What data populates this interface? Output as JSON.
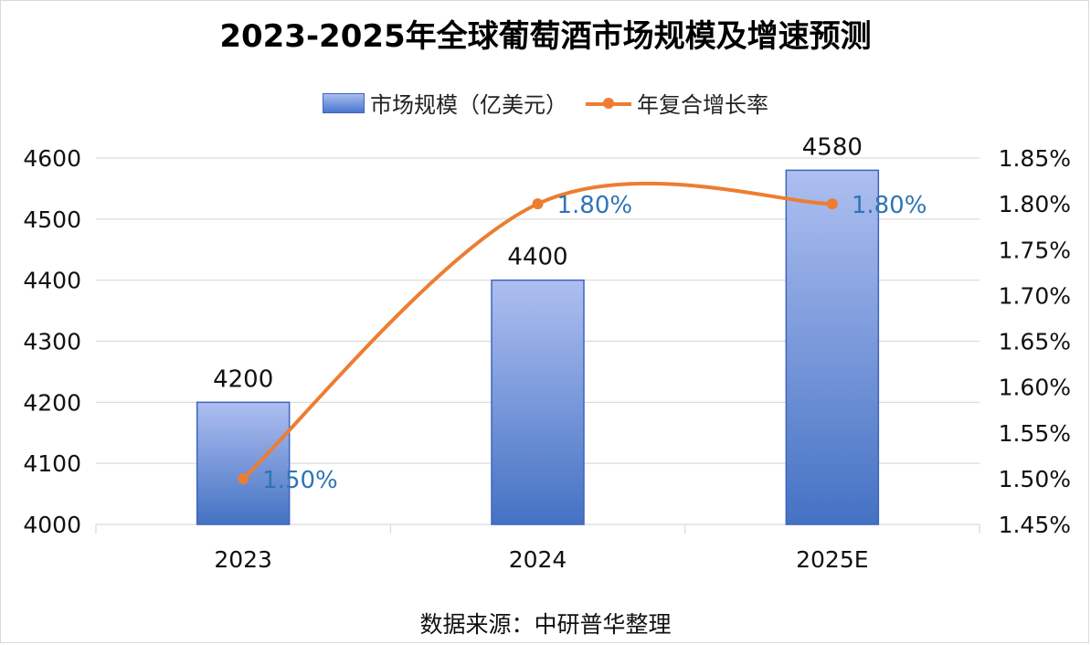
{
  "title": "2023-2025年全球葡萄酒市场规模及增速预测",
  "source": "数据来源：中研普华整理",
  "chart_data": {
    "type": "bar+line",
    "categories": [
      "2023",
      "2024",
      "2025E"
    ],
    "series": [
      {
        "name": "市场规模（亿美元）",
        "type": "bar",
        "axis": "left",
        "values": [
          4200,
          4400,
          4580
        ],
        "labels": [
          "4200",
          "4400",
          "4580"
        ]
      },
      {
        "name": "年复合增长率",
        "type": "line",
        "axis": "right",
        "values": [
          1.5,
          1.8,
          1.8
        ],
        "labels": [
          "1.50%",
          "1.80%",
          "1.80%"
        ]
      }
    ],
    "left_axis": {
      "ylim": [
        4000,
        4600
      ],
      "ticks": [
        4000,
        4100,
        4200,
        4300,
        4400,
        4500,
        4600
      ],
      "tick_labels": [
        "4000",
        "4100",
        "4200",
        "4300",
        "4400",
        "4500",
        "4600"
      ]
    },
    "right_axis": {
      "ylim": [
        1.45,
        1.85
      ],
      "ticks": [
        1.45,
        1.5,
        1.55,
        1.6,
        1.65,
        1.7,
        1.75,
        1.8,
        1.85
      ],
      "tick_labels": [
        "1.45%",
        "1.50%",
        "1.55%",
        "1.60%",
        "1.65%",
        "1.70%",
        "1.75%",
        "1.80%",
        "1.85%"
      ]
    },
    "grid": true,
    "legend_position": "top-center",
    "colors": {
      "bar_top": "#aebff0",
      "bar_bottom": "#4472c4",
      "bar_border": "#3f64c0",
      "line": "#ed7d31",
      "line_label": "#2e75b6",
      "grid": "#d9d9d9"
    }
  }
}
